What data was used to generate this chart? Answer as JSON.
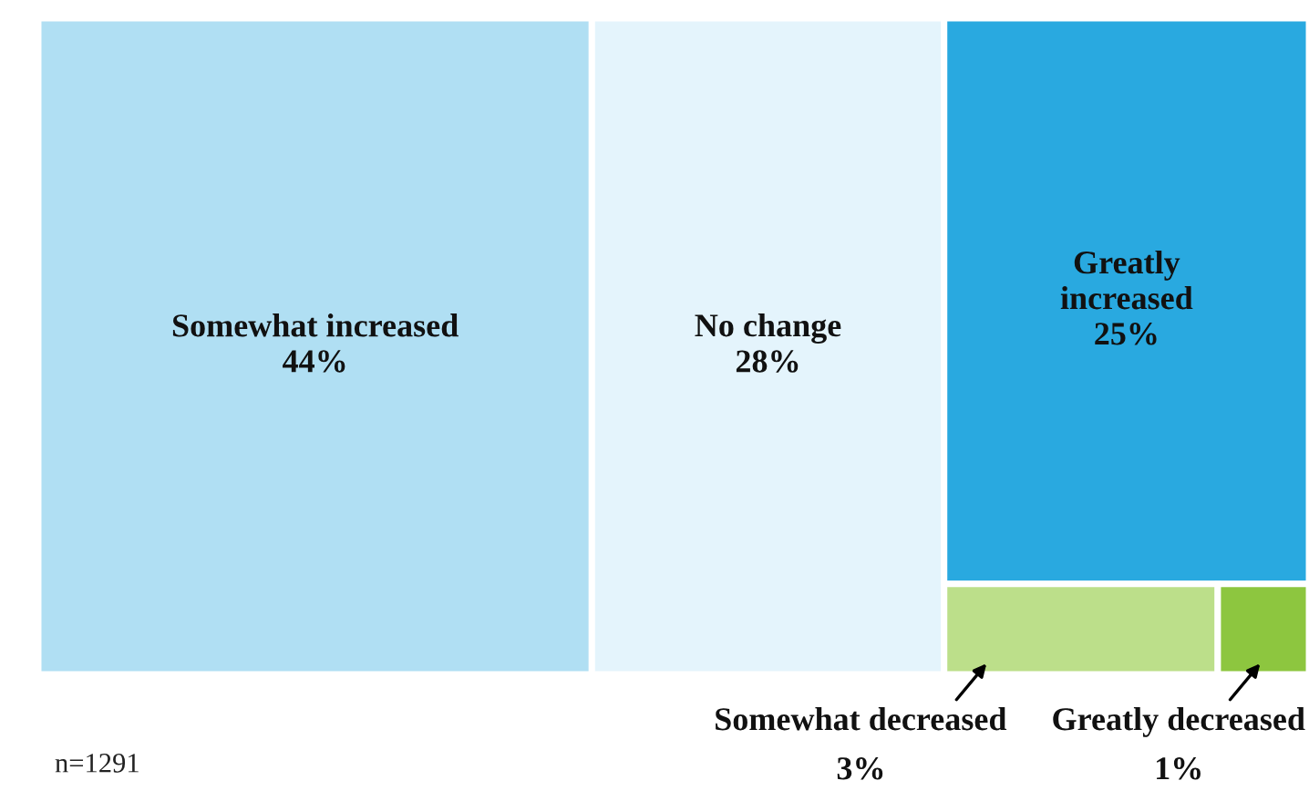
{
  "chart_data": {
    "type": "other",
    "categories": [
      "Somewhat increased",
      "No change",
      "Greatly increased",
      "Somewhat decreased",
      "Greatly decreased"
    ],
    "values": [
      44,
      28,
      25,
      3,
      1
    ],
    "value_labels": [
      "44%",
      "28%",
      "25%",
      "3%",
      "1%"
    ],
    "colors": [
      "#b0dff3",
      "#e4f4fc",
      "#29a9e0",
      "#bcdf8a",
      "#8dc63f"
    ],
    "annotations": [
      "n=1291"
    ]
  }
}
